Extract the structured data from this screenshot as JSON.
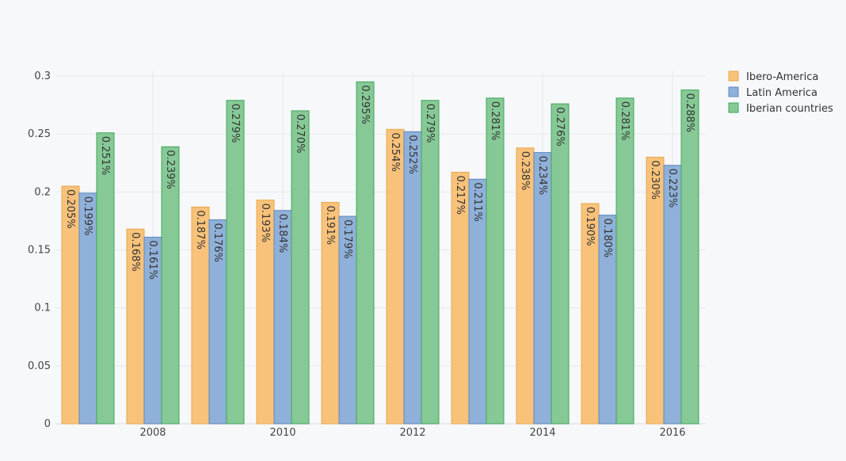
{
  "chart_data": {
    "type": "bar",
    "title": "",
    "xlabel": "",
    "ylabel": "",
    "x": [
      2007,
      2008,
      2009,
      2010,
      2011,
      2012,
      2013,
      2014,
      2015,
      2016
    ],
    "x_tick_labels": [
      "2008",
      "2010",
      "2012",
      "2014",
      "2016"
    ],
    "y_tick_labels": [
      "0",
      "0.05",
      "0.1",
      "0.15",
      "0.2",
      "0.25",
      "0.3"
    ],
    "ylim": [
      0,
      0.3
    ],
    "grid": true,
    "legend_position": "top-right",
    "series": [
      {
        "name": "Ibero-America",
        "color": "#f8c27a",
        "values": [
          0.205,
          0.168,
          0.187,
          0.193,
          0.191,
          0.254,
          0.217,
          0.238,
          0.19,
          0.23
        ],
        "labels": [
          "0.205%",
          "0.168%",
          "0.187%",
          "0.193%",
          "0.191%",
          "0.254%",
          "0.217%",
          "0.238%",
          "0.190%",
          "0.230%"
        ]
      },
      {
        "name": "Latin America",
        "color": "#8fb0d8",
        "values": [
          0.199,
          0.161,
          0.176,
          0.184,
          0.179,
          0.252,
          0.211,
          0.234,
          0.18,
          0.223
        ],
        "labels": [
          "0.199%",
          "0.161%",
          "0.176%",
          "0.184%",
          "0.179%",
          "0.252%",
          "0.211%",
          "0.234%",
          "0.180%",
          "0.223%"
        ]
      },
      {
        "name": "Iberian countries",
        "color": "#86c996",
        "values": [
          0.251,
          0.239,
          0.279,
          0.27,
          0.295,
          0.279,
          0.281,
          0.276,
          0.281,
          0.288
        ],
        "labels": [
          "0.251%",
          "0.239%",
          "0.279%",
          "0.270%",
          "0.295%",
          "0.279%",
          "0.281%",
          "0.276%",
          "0.281%",
          "0.288%"
        ]
      }
    ]
  }
}
